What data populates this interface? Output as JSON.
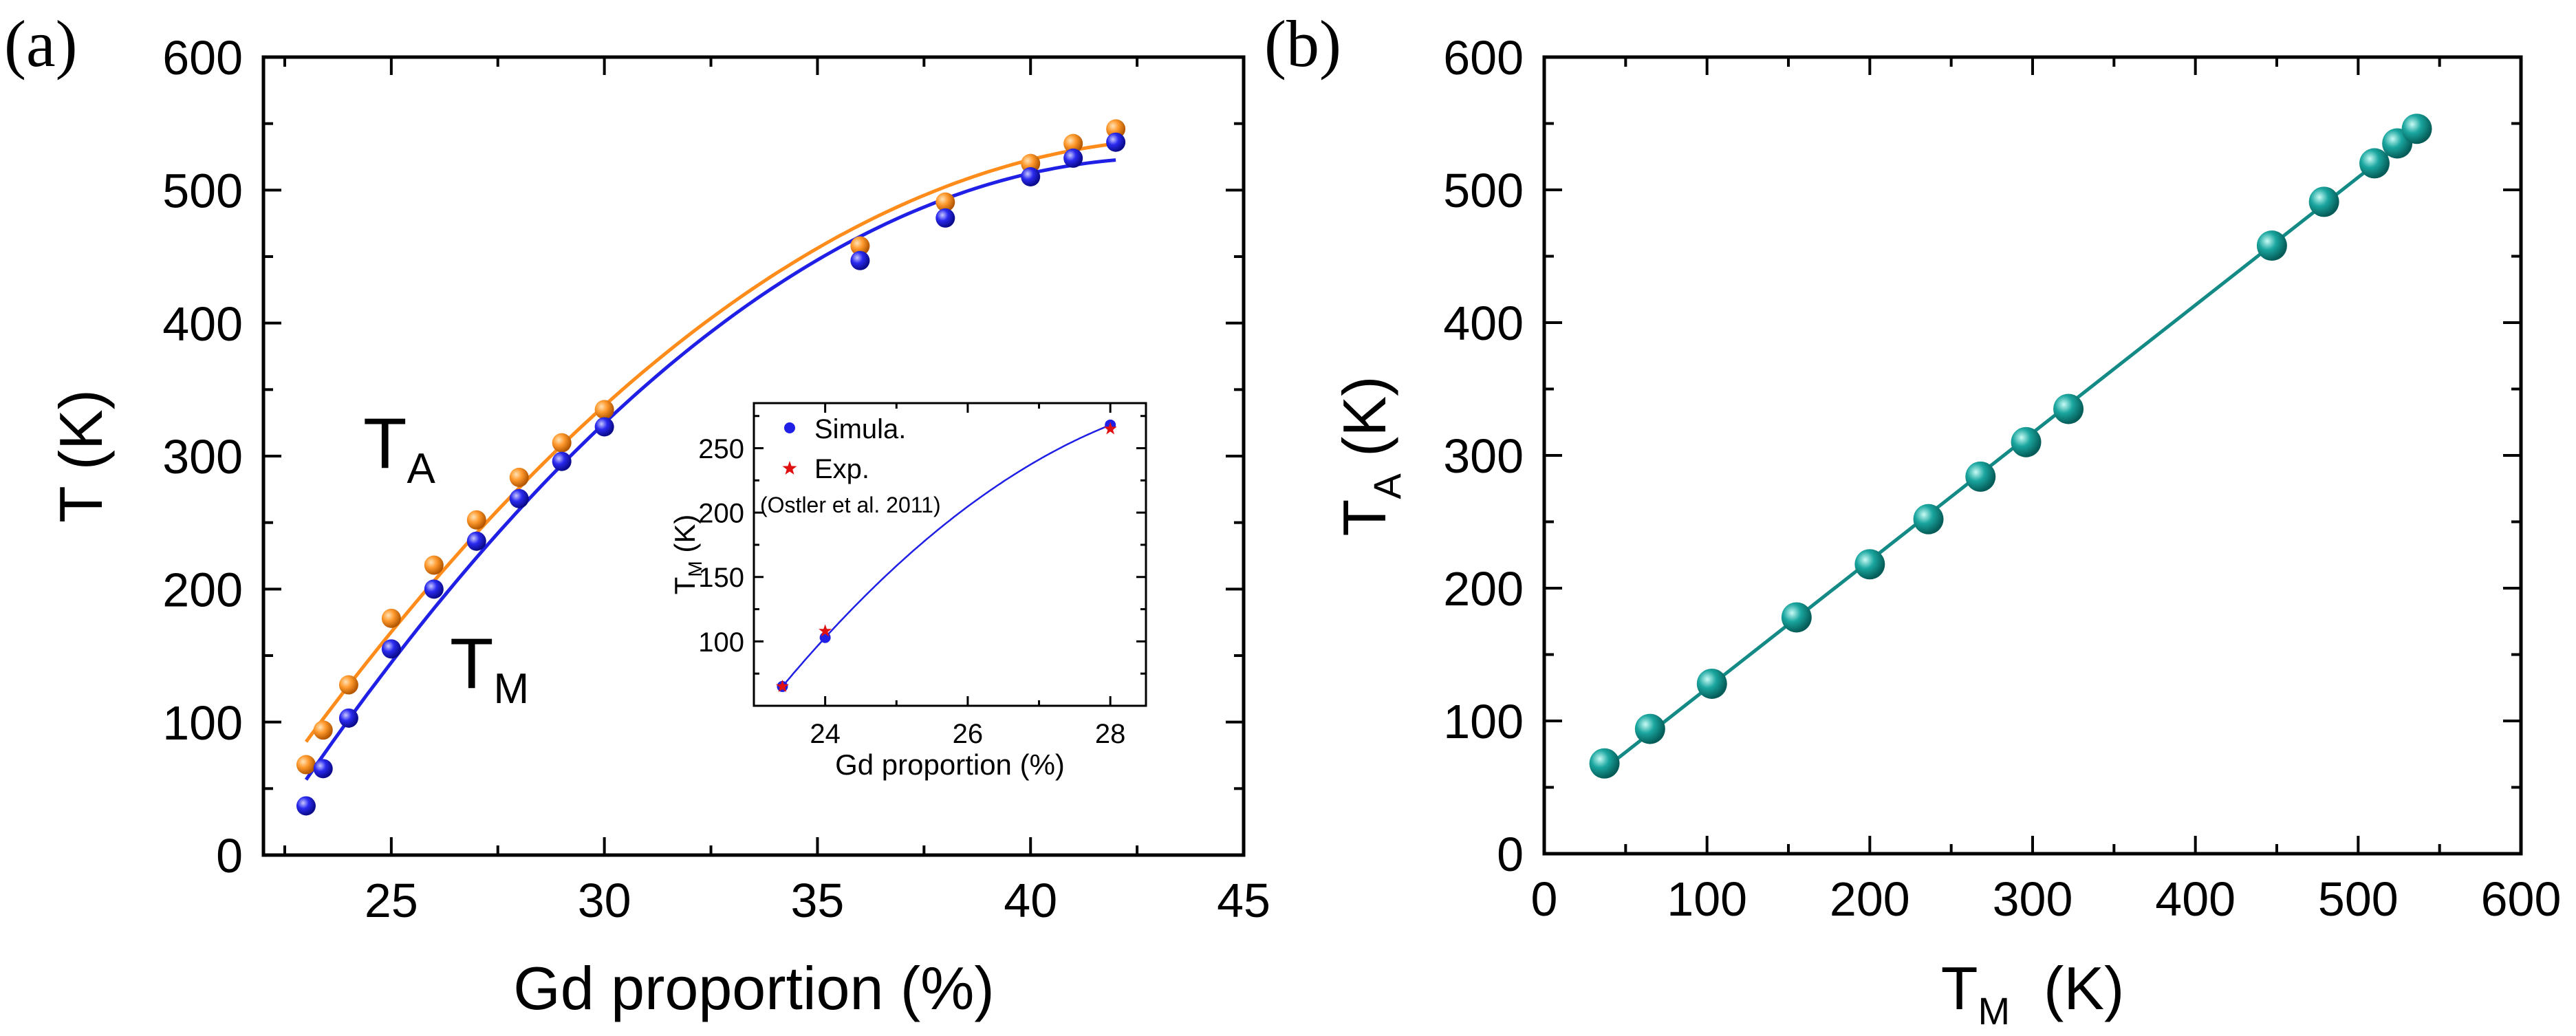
{
  "colors": {
    "ta": "#ff8c1a",
    "tm": "#1f1fe6",
    "teal": "#138a85",
    "exp_star": "#e01010",
    "axis": "#000000"
  },
  "chart_data": [
    {
      "type": "scatter",
      "panel_label": "(a)",
      "xlabel": "Gd proportion (%)",
      "ylabel": "T (K)",
      "xlim": [
        22,
        45
      ],
      "ylim": [
        0,
        600
      ],
      "xticks": [
        25,
        30,
        35,
        40,
        45
      ],
      "yticks": [
        0,
        100,
        200,
        300,
        400,
        500,
        600
      ],
      "annotations": [
        {
          "id": "ta",
          "text": "T",
          "sub": "A"
        },
        {
          "id": "tm",
          "text": "T",
          "sub": "M"
        }
      ],
      "series": [
        {
          "name": "T_A",
          "color_key": "ta",
          "x": [
            23,
            23.4,
            24,
            25,
            26,
            27,
            28,
            29,
            30,
            36,
            38,
            40,
            41,
            42
          ],
          "y": [
            68,
            94,
            128,
            178,
            218,
            252,
            284,
            310,
            335,
            458,
            491,
            520,
            535,
            546
          ],
          "fit": true
        },
        {
          "name": "T_M",
          "color_key": "tm",
          "x": [
            23,
            23.4,
            24,
            25,
            26,
            27,
            28,
            29,
            30,
            36,
            38,
            40,
            41,
            42
          ],
          "y": [
            37,
            65,
            103,
            155,
            200,
            236,
            268,
            296,
            322,
            447,
            479,
            510,
            524,
            536
          ],
          "fit": true
        }
      ],
      "inset": {
        "type": "scatter",
        "xlabel": "Gd proportion (%)",
        "ylabel": "T",
        "ylabel_sub": "M",
        "ylabel_unit": " (K)",
        "xlim": [
          23,
          28.5
        ],
        "ylim": [
          50,
          285
        ],
        "xticks": [
          24,
          26,
          28
        ],
        "yticks": [
          100,
          150,
          200,
          250
        ],
        "legend": [
          {
            "label": "Simula.",
            "marker": "circle",
            "color_key": "tm"
          },
          {
            "label": "Exp.",
            "marker": "star",
            "color_key": "exp_star"
          }
        ],
        "legend_note": "(Ostler et al. 2011)",
        "series": [
          {
            "name": "Simula.",
            "x": [
              23.4,
              24,
              28
            ],
            "y": [
              65,
              103,
              268
            ]
          },
          {
            "name": "Exp.",
            "x": [
              23.4,
              24,
              28
            ],
            "y": [
              65,
              108,
              265
            ]
          }
        ]
      }
    },
    {
      "type": "scatter",
      "panel_label": "(b)",
      "xlabel": "T",
      "xlabel_sub": "M",
      "xlabel_unit": "  (K)",
      "ylabel": "T",
      "ylabel_sub": "A",
      "ylabel_unit": " (K)",
      "xlim": [
        0,
        600
      ],
      "ylim": [
        0,
        600
      ],
      "xticks": [
        0,
        100,
        200,
        300,
        400,
        500,
        600
      ],
      "yticks": [
        0,
        100,
        200,
        300,
        400,
        500,
        600
      ],
      "series": [
        {
          "name": "T_A vs T_M",
          "color_key": "teal",
          "x": [
            37,
            65,
            103,
            155,
            200,
            236,
            268,
            296,
            322,
            447,
            479,
            510,
            524,
            536
          ],
          "y": [
            68,
            94,
            128,
            178,
            218,
            252,
            284,
            310,
            335,
            458,
            491,
            520,
            535,
            546
          ],
          "fit": true
        }
      ]
    }
  ]
}
